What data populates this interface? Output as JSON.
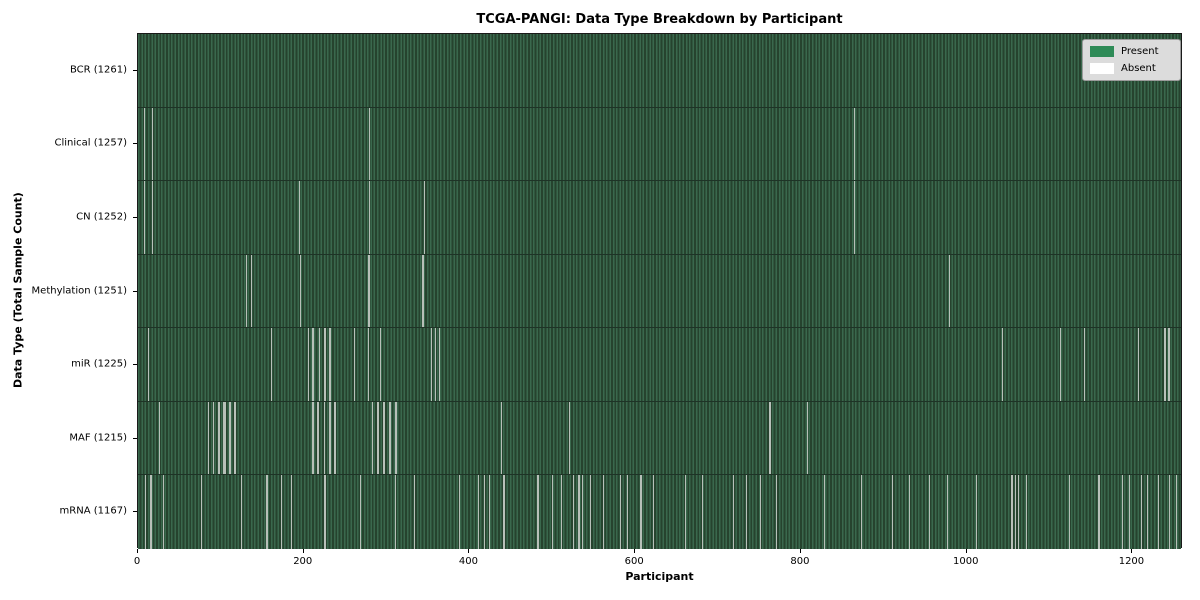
{
  "title": "TCGA-PANGI: Data Type Breakdown by Participant",
  "legend": {
    "items": [
      {
        "label": "Present",
        "color": "#2e8b57"
      },
      {
        "label": "Absent",
        "color": "#ffffff"
      }
    ]
  },
  "colors": {
    "present": "#2e8b57",
    "absent": "#ffffff",
    "row_stripe_light": "#3a684d",
    "row_stripe_dark": "#26432e",
    "absent_stripe_render": "#bfc6c0",
    "legend_bg": "#dcdcdc"
  },
  "chart_data": {
    "type": "heatmap",
    "title": "TCGA-PANGI: Data Type Breakdown by Participant",
    "xlabel": "Participant",
    "ylabel": "Data Type (Total Sample Count)",
    "x_ticks": [
      0,
      200,
      400,
      600,
      800,
      1000,
      1200
    ],
    "x_range": [
      0,
      1261
    ],
    "total_participants": 1261,
    "legend_entries": [
      "Present",
      "Absent"
    ],
    "legend_position": "upper right",
    "grid": false,
    "note": "Presence/absence matrix: green = sample present for that data type, white = absent. absent_stripes are approximate visible participant positions as [start_index, width].",
    "rows": [
      {
        "label": "BCR (1261)",
        "data_type": "BCR",
        "present_count": 1261,
        "absent_count": 0,
        "absent_stripes": []
      },
      {
        "label": "Clinical (1257)",
        "data_type": "Clinical",
        "present_count": 1257,
        "absent_count": 4,
        "absent_stripes": [
          [
            7,
            1
          ],
          [
            17,
            1
          ],
          [
            279,
            1
          ],
          [
            864,
            1
          ]
        ]
      },
      {
        "label": "CN (1252)",
        "data_type": "CN",
        "present_count": 1252,
        "absent_count": 9,
        "absent_stripes": [
          [
            7,
            1
          ],
          [
            17,
            1
          ],
          [
            194,
            2
          ],
          [
            279,
            1
          ],
          [
            345,
            2
          ],
          [
            864,
            1
          ]
        ]
      },
      {
        "label": "Methylation (1251)",
        "data_type": "Methylation",
        "present_count": 1251,
        "absent_count": 10,
        "absent_stripes": [
          [
            130,
            1
          ],
          [
            136,
            1
          ],
          [
            195,
            2
          ],
          [
            278,
            2
          ],
          [
            343,
            2
          ],
          [
            979,
            1
          ]
        ]
      },
      {
        "label": "miR (1225)",
        "data_type": "miR",
        "present_count": 1225,
        "absent_count": 36,
        "absent_stripes": [
          [
            12,
            1
          ],
          [
            160,
            1
          ],
          [
            205,
            2
          ],
          [
            210,
            3
          ],
          [
            218,
            2
          ],
          [
            225,
            2
          ],
          [
            231,
            2
          ],
          [
            261,
            1
          ],
          [
            277,
            1
          ],
          [
            292,
            1
          ],
          [
            353,
            2
          ],
          [
            358,
            2
          ],
          [
            363,
            2
          ],
          [
            1043,
            1
          ],
          [
            1113,
            1
          ],
          [
            1141,
            1
          ],
          [
            1207,
            1
          ],
          [
            1238,
            3
          ],
          [
            1243,
            2
          ]
        ]
      },
      {
        "label": "MAF (1215)",
        "data_type": "MAF",
        "present_count": 1215,
        "absent_count": 46,
        "absent_stripes": [
          [
            25,
            1
          ],
          [
            84,
            2
          ],
          [
            90,
            2
          ],
          [
            97,
            2
          ],
          [
            103,
            3
          ],
          [
            110,
            2
          ],
          [
            116,
            2
          ],
          [
            210,
            2
          ],
          [
            216,
            3
          ],
          [
            224,
            2
          ],
          [
            231,
            2
          ],
          [
            237,
            2
          ],
          [
            282,
            2
          ],
          [
            288,
            3
          ],
          [
            296,
            2
          ],
          [
            303,
            2
          ],
          [
            310,
            3
          ],
          [
            438,
            1
          ],
          [
            520,
            1
          ],
          [
            762,
            1
          ],
          [
            807,
            1
          ]
        ]
      },
      {
        "label": "mRNA (1167)",
        "data_type": "mRNA",
        "present_count": 1167,
        "absent_count": 94,
        "absent_stripes": [
          [
            8,
            1
          ],
          [
            15,
            1
          ],
          [
            30,
            1
          ],
          [
            76,
            1
          ],
          [
            124,
            1
          ],
          [
            155,
            1
          ],
          [
            172,
            1
          ],
          [
            185,
            1
          ],
          [
            225,
            1
          ],
          [
            268,
            1
          ],
          [
            310,
            1
          ],
          [
            333,
            1
          ],
          [
            387,
            1
          ],
          [
            410,
            1
          ],
          [
            417,
            2
          ],
          [
            423,
            1
          ],
          [
            441,
            1
          ],
          [
            482,
            2
          ],
          [
            500,
            1
          ],
          [
            510,
            1
          ],
          [
            525,
            1
          ],
          [
            531,
            2
          ],
          [
            536,
            1
          ],
          [
            545,
            1
          ],
          [
            561,
            2
          ],
          [
            582,
            1
          ],
          [
            590,
            1
          ],
          [
            606,
            2
          ],
          [
            621,
            1
          ],
          [
            660,
            1
          ],
          [
            680,
            1
          ],
          [
            718,
            2
          ],
          [
            734,
            1
          ],
          [
            750,
            2
          ],
          [
            770,
            1
          ],
          [
            828,
            1
          ],
          [
            872,
            1
          ],
          [
            910,
            1
          ],
          [
            930,
            1
          ],
          [
            954,
            1
          ],
          [
            976,
            2
          ],
          [
            1011,
            2
          ],
          [
            1054,
            1
          ],
          [
            1058,
            1
          ],
          [
            1062,
            1
          ],
          [
            1071,
            1
          ],
          [
            1123,
            2
          ],
          [
            1159,
            1
          ],
          [
            1187,
            2
          ],
          [
            1196,
            1
          ],
          [
            1210,
            1
          ],
          [
            1217,
            1
          ],
          [
            1231,
            1
          ],
          [
            1244,
            2
          ],
          [
            1252,
            1
          ]
        ]
      }
    ]
  }
}
